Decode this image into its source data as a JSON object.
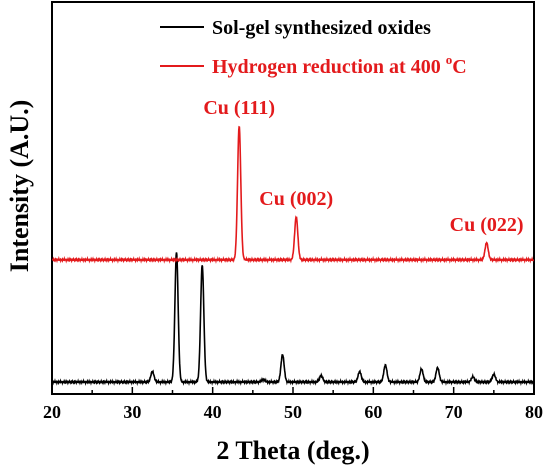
{
  "chart_data": {
    "type": "line",
    "title": "",
    "xlabel": "2 Theta (deg.)",
    "ylabel": "Intensity (A.U.)",
    "xlim": [
      20,
      80
    ],
    "x_ticks": [
      20,
      30,
      40,
      50,
      60,
      70,
      80
    ],
    "y_ticks_shown": false,
    "grid": false,
    "legend_position": "top-right",
    "series": [
      {
        "name": "Sol-gel synthesized oxides",
        "color": "#000000",
        "baseline": 0.06,
        "peaks": [
          {
            "x": 32.5,
            "h": 0.08
          },
          {
            "x": 35.5,
            "h": 1.0
          },
          {
            "x": 38.7,
            "h": 0.9
          },
          {
            "x": 46.3,
            "h": 0.02
          },
          {
            "x": 48.7,
            "h": 0.21
          },
          {
            "x": 53.5,
            "h": 0.05
          },
          {
            "x": 58.3,
            "h": 0.08
          },
          {
            "x": 61.5,
            "h": 0.13
          },
          {
            "x": 66.0,
            "h": 0.1
          },
          {
            "x": 68.0,
            "h": 0.11
          },
          {
            "x": 72.4,
            "h": 0.04
          },
          {
            "x": 75.0,
            "h": 0.06
          }
        ]
      },
      {
        "name": "Hydrogen reduction at 400 °C",
        "name_parts": {
          "pre": "Hydrogen reduction at 400 ",
          "sup": "o",
          "post": "C"
        },
        "color": "#e31a1c",
        "baseline": 1.0,
        "peaks": [
          {
            "x": 43.3,
            "h": 1.03
          },
          {
            "x": 50.4,
            "h": 0.33
          },
          {
            "x": 74.1,
            "h": 0.13
          }
        ]
      }
    ],
    "annotations": [
      {
        "text": "Cu (111)",
        "x": 43.3,
        "series": 1
      },
      {
        "text": "Cu (002)",
        "x": 50.4,
        "series": 1
      },
      {
        "text": "Cu (022)",
        "x": 74.1,
        "series": 1
      }
    ]
  }
}
